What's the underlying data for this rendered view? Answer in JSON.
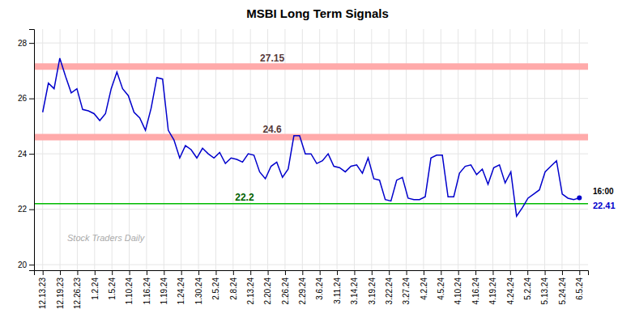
{
  "chart_data": {
    "type": "line",
    "title": "MSBI Long Term Signals",
    "color": "#0000cc",
    "grid": true,
    "xlim": [
      -0.5,
      31.5
    ],
    "ylim": [
      19.8,
      28.5
    ],
    "yticks": [
      20,
      22,
      24,
      26,
      28
    ],
    "xticks": [
      {
        "value": 0,
        "label": "12.13.23"
      },
      {
        "value": 1,
        "label": "12.19.23"
      },
      {
        "value": 2,
        "label": "12.26.23"
      },
      {
        "value": 3,
        "label": "1.2.24"
      },
      {
        "value": 4,
        "label": "1.5.24"
      },
      {
        "value": 5,
        "label": "1.10.24"
      },
      {
        "value": 6,
        "label": "1.16.24"
      },
      {
        "value": 7,
        "label": "1.19.24"
      },
      {
        "value": 8,
        "label": "1.24.24"
      },
      {
        "value": 9,
        "label": "1.30.24"
      },
      {
        "value": 10,
        "label": "2.5.24"
      },
      {
        "value": 11,
        "label": "2.8.24"
      },
      {
        "value": 12,
        "label": "2.13.24"
      },
      {
        "value": 13,
        "label": "2.20.24"
      },
      {
        "value": 14,
        "label": "2.26.24"
      },
      {
        "value": 15,
        "label": "2.29.24"
      },
      {
        "value": 16,
        "label": "3.6.24"
      },
      {
        "value": 17,
        "label": "3.11.24"
      },
      {
        "value": 18,
        "label": "3.14.24"
      },
      {
        "value": 19,
        "label": "3.19.24"
      },
      {
        "value": 20,
        "label": "3.22.24"
      },
      {
        "value": 21,
        "label": "3.27.24"
      },
      {
        "value": 22,
        "label": "4.2.24"
      },
      {
        "value": 23,
        "label": "4.5.24"
      },
      {
        "value": 24,
        "label": "4.10.24"
      },
      {
        "value": 25,
        "label": "4.16.24"
      },
      {
        "value": 26,
        "label": "4.19.24"
      },
      {
        "value": 27,
        "label": "4.24.24"
      },
      {
        "value": 28,
        "label": "5.2.24"
      },
      {
        "value": 29,
        "label": "5.13.24"
      },
      {
        "value": 30,
        "label": "5.24.24"
      },
      {
        "value": 31,
        "label": "6.5.24"
      }
    ],
    "x": [
      0,
      0.3298,
      0.6596,
      0.9894,
      1.3191,
      1.6489,
      1.9787,
      2.3085,
      2.6383,
      2.9681,
      3.2979,
      3.6277,
      3.9574,
      4.2872,
      4.617,
      4.9468,
      5.2766,
      5.6064,
      5.9362,
      6.266,
      6.5957,
      6.9255,
      7.2553,
      7.5851,
      7.9149,
      8.2447,
      8.5745,
      8.9043,
      9.234,
      9.5638,
      9.8936,
      10.2234,
      10.5532,
      10.883,
      11.2128,
      11.5426,
      11.8723,
      12.2021,
      12.5319,
      12.8617,
      13.1915,
      13.5213,
      13.8511,
      14.1809,
      14.5106,
      14.8404,
      15.1702,
      15.5,
      15.8298,
      16.1596,
      16.4894,
      16.8191,
      17.1489,
      17.4787,
      17.8085,
      18.1383,
      18.4681,
      18.7979,
      19.1277,
      19.4574,
      19.7872,
      20.117,
      20.4468,
      20.7766,
      21.1064,
      21.4362,
      21.766,
      22.0957,
      22.4255,
      22.7553,
      23.0851,
      23.4149,
      23.7447,
      24.0745,
      24.4043,
      24.734,
      25.0638,
      25.3936,
      25.7234,
      26.0532,
      26.383,
      26.7128,
      27.0426,
      27.3723,
      27.7021,
      28.0319,
      28.3617,
      28.6915,
      29.0213,
      29.3511,
      29.6809,
      30.0106,
      30.3404,
      30.6702,
      31
    ],
    "values": [
      25.5,
      26.55,
      26.35,
      27.45,
      26.8,
      26.2,
      26.35,
      25.6,
      25.55,
      25.45,
      25.2,
      25.45,
      26.35,
      26.95,
      26.35,
      26.1,
      25.5,
      25.3,
      24.85,
      25.65,
      26.75,
      26.7,
      24.85,
      24.5,
      23.85,
      24.3,
      24.15,
      23.85,
      24.2,
      24.0,
      23.85,
      24.05,
      23.65,
      23.85,
      23.8,
      23.7,
      24.0,
      23.95,
      23.35,
      23.1,
      23.55,
      23.7,
      23.15,
      23.45,
      24.65,
      24.65,
      24.0,
      24.0,
      23.65,
      23.75,
      24.0,
      23.55,
      23.5,
      23.35,
      23.55,
      23.6,
      23.3,
      23.85,
      23.1,
      23.05,
      22.35,
      22.3,
      23.05,
      23.15,
      22.4,
      22.35,
      22.35,
      22.45,
      23.85,
      23.95,
      23.95,
      22.45,
      22.45,
      23.3,
      23.55,
      23.6,
      23.25,
      23.45,
      22.9,
      23.5,
      23.6,
      22.95,
      23.35,
      21.75,
      22.05,
      22.4,
      22.55,
      22.7,
      23.35,
      23.55,
      23.75,
      22.55,
      22.4,
      22.35,
      22.41
    ],
    "hlines": [
      {
        "value": 27.15,
        "label": "27.15",
        "color": "#ffaaaa"
      },
      {
        "value": 24.6,
        "label": "24.6",
        "color": "#ffaaaa"
      },
      {
        "value": 22.2,
        "label": "22.2",
        "color": "#00bb00"
      }
    ],
    "last_point": {
      "x": 31,
      "y": 22.41,
      "label": "22.41",
      "time": "16:00"
    },
    "watermark": "Stock Traders Daily"
  }
}
